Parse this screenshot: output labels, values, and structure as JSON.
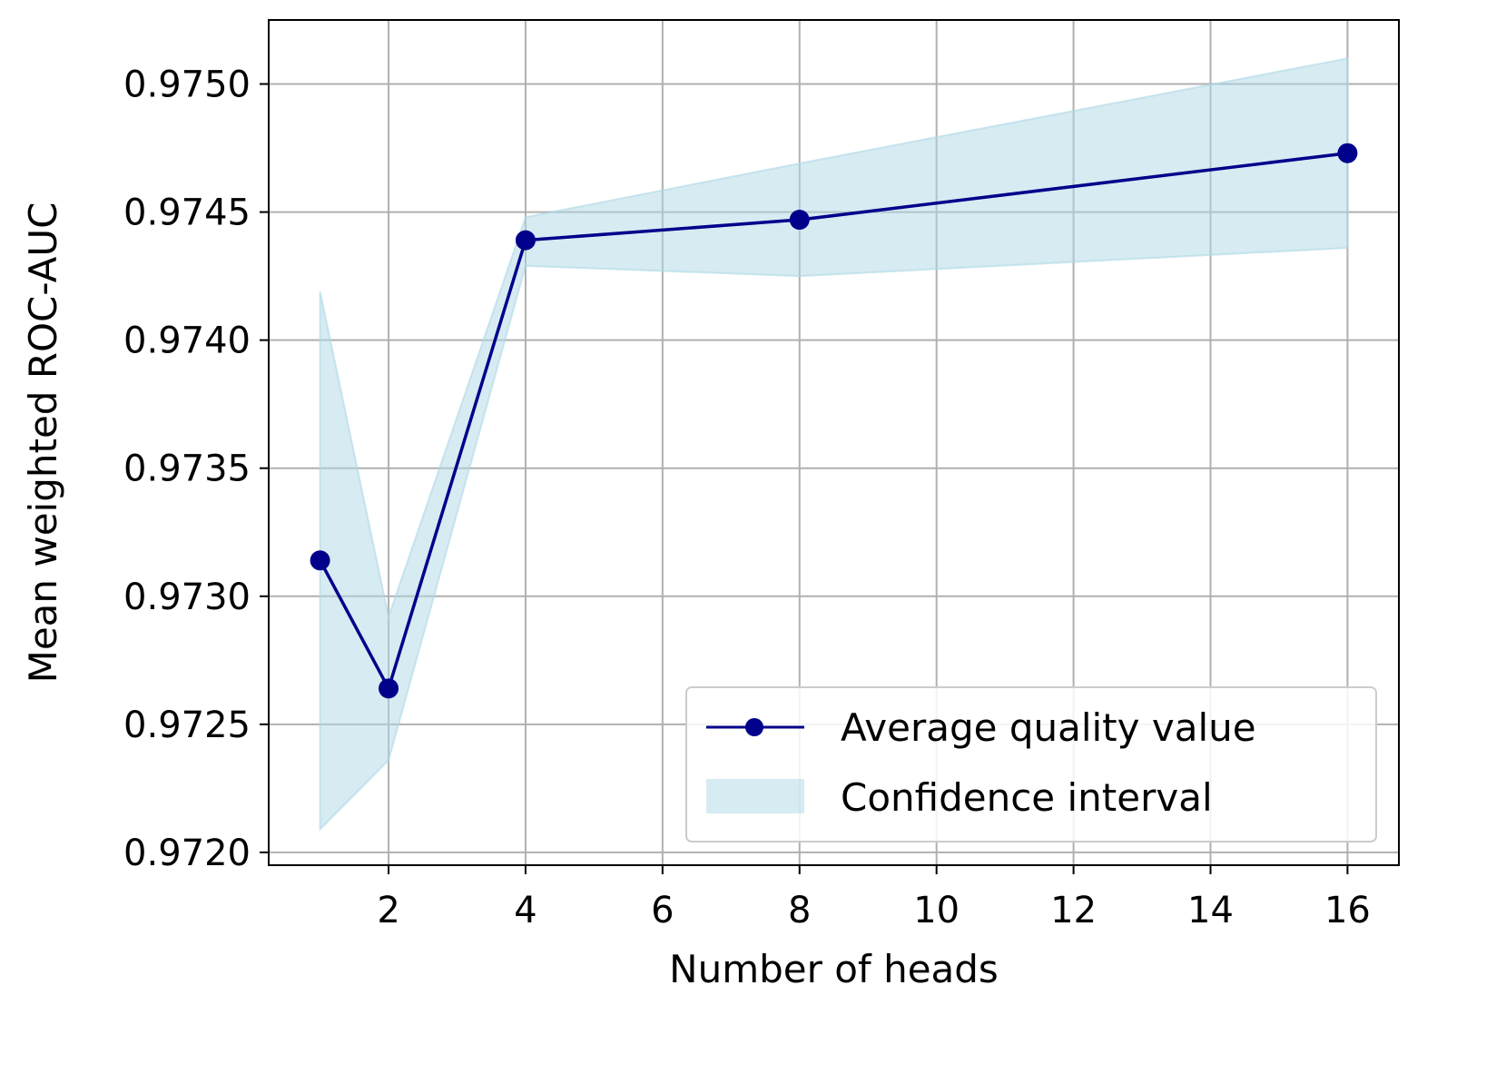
{
  "chart_data": {
    "type": "line",
    "xlabel": "Number of heads",
    "ylabel": "Mean weighted ROC-AUC",
    "xlim": [
      0.25,
      16.75
    ],
    "ylim": [
      0.97195,
      0.97525
    ],
    "xticks": [
      2,
      4,
      6,
      8,
      10,
      12,
      14,
      16
    ],
    "yticks": [
      0.972,
      0.9725,
      0.973,
      0.9735,
      0.974,
      0.9745,
      0.975
    ],
    "ytick_labels": [
      "0.9720",
      "0.9725",
      "0.9730",
      "0.9735",
      "0.9740",
      "0.9745",
      "0.9750"
    ],
    "grid": true,
    "legend_position": "lower-right",
    "series": [
      {
        "name": "Average quality value",
        "x": [
          1,
          2,
          4,
          8,
          16
        ],
        "y": [
          0.97314,
          0.97264,
          0.97439,
          0.97447,
          0.97473
        ],
        "color": "#00008b",
        "marker": "circle"
      }
    ],
    "confidence_interval": {
      "name": "Confidence interval",
      "x": [
        1,
        2,
        4,
        8,
        16
      ],
      "lower": [
        0.97209,
        0.97236,
        0.97429,
        0.97425,
        0.97436
      ],
      "upper": [
        0.97419,
        0.97292,
        0.97448,
        0.97469,
        0.9751
      ],
      "color": "#add8e6"
    }
  }
}
